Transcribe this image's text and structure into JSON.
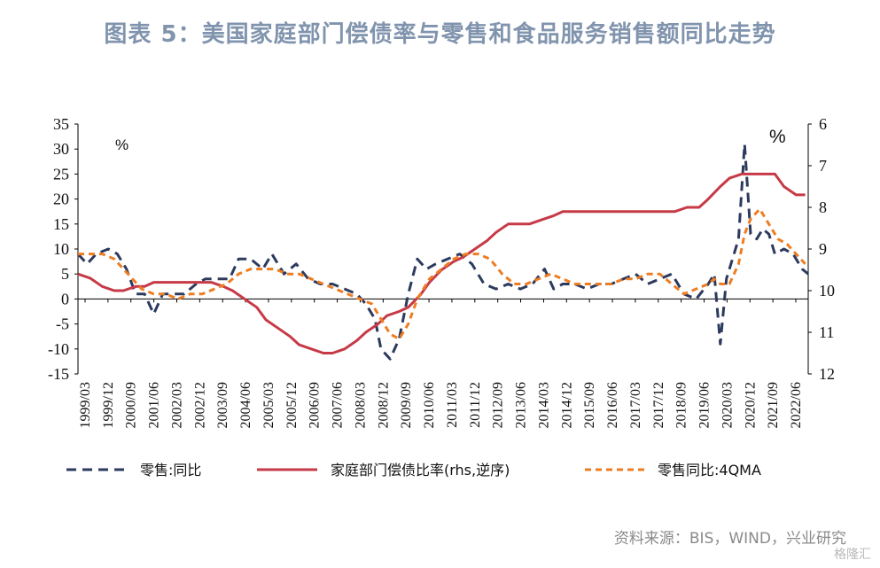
{
  "title": "图表 5：美国家庭部门偿债率与零售和食品服务销售额同比走势",
  "source": "资料来源：BIS，WIND，兴业研究",
  "watermark": "格隆汇",
  "colors": {
    "retail": "#2c3a5e",
    "debt": "#c63a47",
    "retail4q": "#ee7d22",
    "title": "#8194ae"
  },
  "chart_data": {
    "type": "line",
    "left_unit": "%",
    "right_unit": "%",
    "ylim_left": [
      -15,
      35
    ],
    "ylim_right": [
      12,
      6
    ],
    "yticks_left": [
      "35",
      "30",
      "25",
      "20",
      "15",
      "10",
      "5",
      "0",
      "-5",
      "-10",
      "-15"
    ],
    "yticks_right": [
      "6",
      "7",
      "8",
      "9",
      "10",
      "11",
      "12"
    ],
    "x_labels": [
      "1999/03",
      "1999/12",
      "2000/09",
      "2001/06",
      "2002/03",
      "2002/12",
      "2003/09",
      "2004/06",
      "2005/03",
      "2005/12",
      "2006/09",
      "2007/06",
      "2008/03",
      "2008/12",
      "2009/09",
      "2010/06",
      "2011/03",
      "2011/12",
      "2012/09",
      "2013/06",
      "2014/03",
      "2014/12",
      "2015/09",
      "2016/06",
      "2017/03",
      "2017/12",
      "2018/09",
      "2019/06",
      "2020/03",
      "2020/12",
      "2021/09",
      "2022/06"
    ],
    "series": [
      {
        "name": "零售:同比",
        "axis": "left",
        "style": "dashed",
        "x": [
          1999.0,
          1999.3,
          1999.6,
          2000.0,
          2000.3,
          2000.6,
          2000.9,
          2001.2,
          2001.5,
          2001.8,
          2002.1,
          2002.5,
          2002.9,
          2003.2,
          2003.6,
          2004.0,
          2004.3,
          2004.7,
          2005.1,
          2005.4,
          2005.8,
          2006.2,
          2006.6,
          2007.0,
          2007.4,
          2007.8,
          2008.2,
          2008.5,
          2008.8,
          2009.0,
          2009.3,
          2009.6,
          2009.9,
          2010.2,
          2010.5,
          2010.8,
          2011.2,
          2011.6,
          2012.0,
          2012.4,
          2012.8,
          2013.2,
          2013.6,
          2014.0,
          2014.4,
          2014.7,
          2015.0,
          2015.4,
          2015.8,
          2016.2,
          2016.6,
          2017.0,
          2017.4,
          2017.8,
          2018.2,
          2018.6,
          2019.0,
          2019.4,
          2019.8,
          2020.0,
          2020.2,
          2020.4,
          2020.6,
          2020.8,
          2021.0,
          2021.2,
          2021.4,
          2021.6,
          2021.8,
          2022.0,
          2022.3,
          2022.6,
          2022.9,
          2023.1
        ],
        "y": [
          9,
          7,
          9,
          10,
          9,
          6,
          1,
          1,
          -3,
          1,
          1,
          1,
          3,
          4,
          4,
          4,
          8,
          8,
          6,
          9,
          5,
          7,
          4,
          3,
          3,
          2,
          1,
          -1,
          -4,
          -10,
          -12,
          -8,
          1,
          8,
          6,
          7,
          8,
          9,
          7,
          3,
          2,
          3,
          2,
          3,
          6,
          2,
          3,
          3,
          2,
          3,
          3,
          4,
          5,
          3,
          4,
          5,
          1,
          0,
          3,
          5,
          -9,
          4,
          8,
          12,
          31,
          13,
          12,
          14,
          13,
          9,
          10,
          9,
          6,
          5
        ]
      },
      {
        "name": "家庭部门偿债比率(rhs,逆序)",
        "axis": "right",
        "style": "solid",
        "x": [
          1999.0,
          1999.4,
          1999.8,
          2000.2,
          2000.5,
          2000.9,
          2001.2,
          2001.5,
          2001.9,
          2002.3,
          2002.7,
          2003.0,
          2003.4,
          2003.8,
          2004.1,
          2004.5,
          2004.9,
          2005.2,
          2005.6,
          2006.0,
          2006.3,
          2006.7,
          2007.1,
          2007.4,
          2007.8,
          2008.2,
          2008.5,
          2008.9,
          2009.2,
          2009.6,
          2009.9,
          2010.3,
          2010.6,
          2011.0,
          2011.4,
          2011.7,
          2012.1,
          2012.5,
          2012.8,
          2013.2,
          2013.6,
          2013.9,
          2014.3,
          2014.7,
          2015.0,
          2015.4,
          2015.8,
          2016.2,
          2016.5,
          2016.9,
          2017.3,
          2017.6,
          2018.0,
          2018.4,
          2018.7,
          2019.1,
          2019.5,
          2019.8,
          2020.2,
          2020.5,
          2020.9,
          2021.2,
          2021.6,
          2022.0,
          2022.3,
          2022.7,
          2023.0
        ],
        "y": [
          9.6,
          9.7,
          9.9,
          10.0,
          10.0,
          9.9,
          9.9,
          9.8,
          9.8,
          9.8,
          9.8,
          9.8,
          9.8,
          9.9,
          10.0,
          10.2,
          10.4,
          10.7,
          10.9,
          11.1,
          11.3,
          11.4,
          11.5,
          11.5,
          11.4,
          11.2,
          11.0,
          10.8,
          10.6,
          10.5,
          10.4,
          10.1,
          9.8,
          9.5,
          9.3,
          9.2,
          9.0,
          8.8,
          8.6,
          8.4,
          8.4,
          8.4,
          8.3,
          8.2,
          8.1,
          8.1,
          8.1,
          8.1,
          8.1,
          8.1,
          8.1,
          8.1,
          8.1,
          8.1,
          8.1,
          8.0,
          8.0,
          7.8,
          7.5,
          7.3,
          7.2,
          7.2,
          7.2,
          7.2,
          7.5,
          7.7,
          7.7
        ]
      },
      {
        "name": "零售同比:4QMA",
        "axis": "left",
        "style": "dashed",
        "x": [
          1999.0,
          1999.4,
          1999.8,
          2000.2,
          2000.5,
          2000.8,
          2001.1,
          2001.5,
          2001.9,
          2002.3,
          2002.7,
          2003.1,
          2003.5,
          2003.9,
          2004.3,
          2004.7,
          2005.1,
          2005.5,
          2005.9,
          2006.3,
          2006.7,
          2007.1,
          2007.5,
          2007.9,
          2008.3,
          2008.7,
          2009.0,
          2009.3,
          2009.6,
          2009.9,
          2010.2,
          2010.6,
          2011.0,
          2011.4,
          2011.8,
          2012.2,
          2012.6,
          2013.0,
          2013.4,
          2013.8,
          2014.2,
          2014.6,
          2015.0,
          2015.4,
          2015.8,
          2016.2,
          2016.6,
          2017.0,
          2017.4,
          2017.8,
          2018.2,
          2018.6,
          2019.0,
          2019.4,
          2019.8,
          2020.0,
          2020.2,
          2020.5,
          2020.8,
          2021.0,
          2021.2,
          2021.5,
          2021.8,
          2022.1,
          2022.4,
          2022.7,
          2023.0
        ],
        "y": [
          9,
          9,
          9,
          8,
          6,
          4,
          2,
          1,
          1,
          0,
          1,
          1,
          2,
          3,
          5,
          6,
          6,
          6,
          5,
          5,
          4,
          3,
          2,
          1,
          0,
          -1,
          -4,
          -7,
          -8,
          -5,
          0,
          4,
          6,
          8,
          9,
          9,
          8,
          5,
          3,
          3,
          4,
          5,
          4,
          3,
          3,
          3,
          3,
          4,
          4,
          5,
          5,
          3,
          1,
          2,
          3,
          4,
          3,
          3,
          7,
          13,
          16,
          18,
          15,
          12,
          11,
          9,
          7
        ]
      }
    ],
    "legend": [
      "零售:同比",
      "家庭部门偿债比率(rhs,逆序)",
      "零售同比:4QMA"
    ],
    "legend_position": "bottom"
  }
}
